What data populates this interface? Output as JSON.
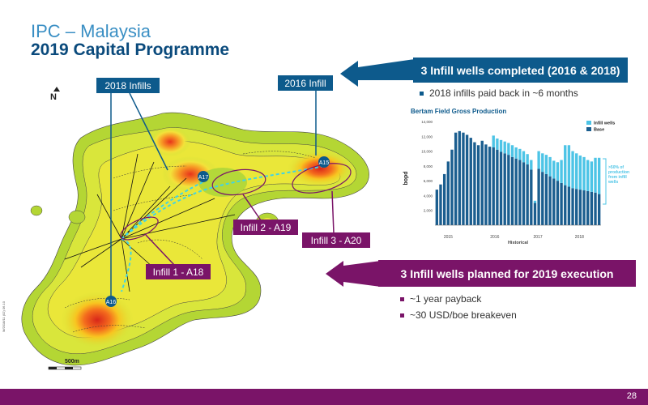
{
  "slide": {
    "title": "IPC – Malaysia",
    "subtitle": "2019 Capital Programme",
    "page_number": "28"
  },
  "map": {
    "north_label": "N",
    "scale_label": "500m",
    "map_code": "M/2018/11 (02) 06.10",
    "labels": {
      "infills_2018": "2018 Infills",
      "infill_2016": "2016 Infill",
      "infill_1": "Infill 1 - A18",
      "infill_2": "Infill 2 - A19",
      "infill_3": "Infill 3 - A20"
    },
    "wells": [
      "A15",
      "A16",
      "A17"
    ]
  },
  "callouts": {
    "completed": "3 Infill wells completed (2016 & 2018)",
    "completed_bullets": [
      "2018 infills paid back in ~6 months"
    ],
    "planned": "3 Infill wells planned for 2019 execution",
    "planned_bullets": [
      "~1 year payback",
      "~30 USD/boe breakeven"
    ]
  },
  "colors": {
    "blue": "#0d5a8c",
    "purple": "#7a1468",
    "infill_bar": "#4dc4e6",
    "base_bar": "#1b5e8f"
  },
  "chart_data": {
    "type": "bar",
    "title": "Bertam Field Gross Production",
    "ylabel": "bopd",
    "xlabel": "Historical",
    "ylim": [
      0,
      14000
    ],
    "yticks": [
      "14,000",
      "12,000",
      "10,000",
      "8,000",
      "6,000",
      "4,000",
      "2,000"
    ],
    "year_labels": [
      "2015",
      "2016",
      "2017",
      "2018"
    ],
    "legend": [
      "Infill wells",
      "Base"
    ],
    "annotation": ">50% of production from infill wells",
    "series": [
      {
        "name": "Base",
        "values": [
          4800,
          5500,
          6900,
          8600,
          10200,
          12500,
          12700,
          12500,
          12200,
          11800,
          11200,
          10800,
          11400,
          10900,
          10600,
          10500,
          10200,
          9900,
          9700,
          9500,
          9200,
          9000,
          8800,
          8500,
          8200,
          7500,
          3000,
          7600,
          7200,
          6900,
          6600,
          6300,
          6000,
          5700,
          5400,
          5200,
          5000,
          4900,
          4800,
          4700,
          4600,
          4500,
          4400,
          4200
        ]
      },
      {
        "name": "Infill wells",
        "values": [
          0,
          0,
          0,
          0,
          0,
          0,
          0,
          0,
          0,
          0,
          0,
          0,
          0,
          0,
          0,
          1600,
          1500,
          1600,
          1600,
          1600,
          1600,
          1500,
          1500,
          1500,
          1400,
          1300,
          300,
          2400,
          2500,
          2600,
          2600,
          2400,
          2500,
          3100,
          5400,
          5600,
          5000,
          4800,
          4600,
          4500,
          4200,
          4100,
          4700,
          4900
        ]
      }
    ]
  }
}
